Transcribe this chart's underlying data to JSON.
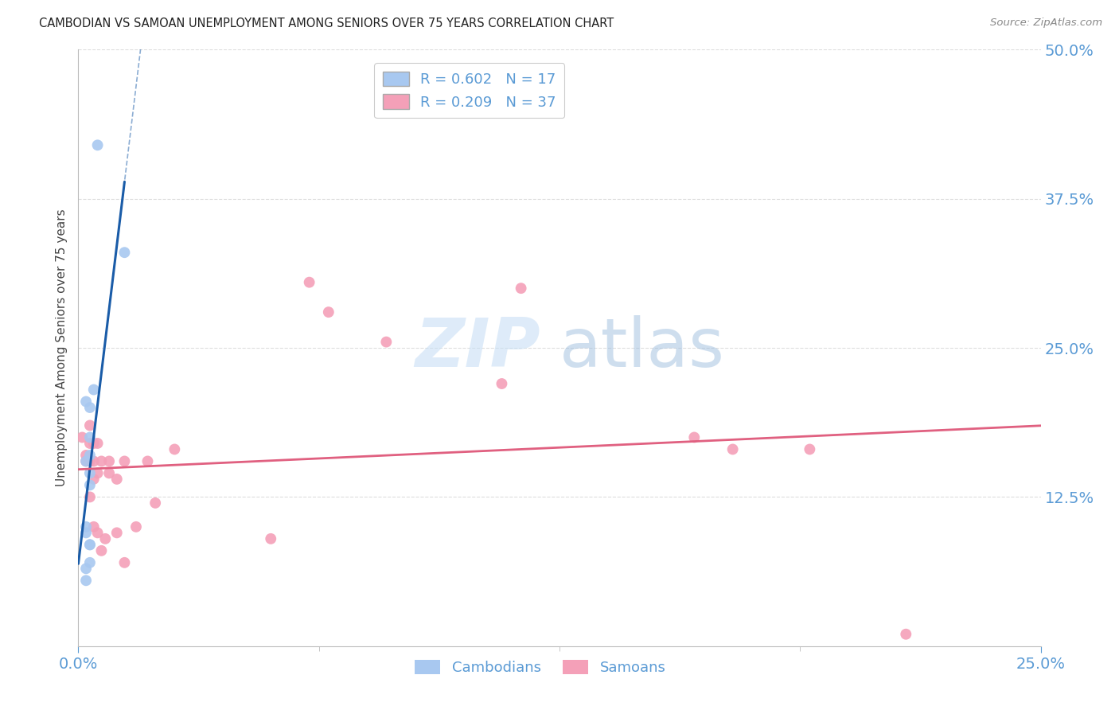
{
  "title": "CAMBODIAN VS SAMOAN UNEMPLOYMENT AMONG SENIORS OVER 75 YEARS CORRELATION CHART",
  "source": "Source: ZipAtlas.com",
  "ylabel": "Unemployment Among Seniors over 75 years",
  "watermark_zip": "ZIP",
  "watermark_atlas": "atlas",
  "xlim": [
    0,
    0.25
  ],
  "ylim": [
    0,
    0.5
  ],
  "cambodian_color": "#a8c8f0",
  "samoan_color": "#f4a0b8",
  "cambodian_line_color": "#1a5ca8",
  "samoan_line_color": "#e06080",
  "cambodian_R": 0.602,
  "cambodian_N": 17,
  "samoan_R": 0.209,
  "samoan_N": 37,
  "cambodian_x": [
    0.003,
    0.005,
    0.004,
    0.003,
    0.002,
    0.003,
    0.002,
    0.003,
    0.003,
    0.002,
    0.002,
    0.003,
    0.003,
    0.002,
    0.002,
    0.003,
    0.012
  ],
  "cambodian_y": [
    0.2,
    0.42,
    0.215,
    0.175,
    0.205,
    0.16,
    0.155,
    0.135,
    0.085,
    0.1,
    0.095,
    0.085,
    0.07,
    0.065,
    0.055,
    0.145,
    0.33
  ],
  "samoan_x": [
    0.001,
    0.002,
    0.002,
    0.003,
    0.003,
    0.003,
    0.003,
    0.004,
    0.004,
    0.004,
    0.004,
    0.005,
    0.005,
    0.005,
    0.006,
    0.006,
    0.007,
    0.008,
    0.008,
    0.01,
    0.01,
    0.012,
    0.012,
    0.015,
    0.018,
    0.02,
    0.025,
    0.05,
    0.06,
    0.065,
    0.08,
    0.11,
    0.115,
    0.16,
    0.17,
    0.19,
    0.215
  ],
  "samoan_y": [
    0.175,
    0.16,
    0.155,
    0.185,
    0.17,
    0.155,
    0.125,
    0.17,
    0.155,
    0.14,
    0.1,
    0.17,
    0.145,
    0.095,
    0.155,
    0.08,
    0.09,
    0.155,
    0.145,
    0.14,
    0.095,
    0.155,
    0.07,
    0.1,
    0.155,
    0.12,
    0.165,
    0.09,
    0.305,
    0.28,
    0.255,
    0.22,
    0.3,
    0.175,
    0.165,
    0.165,
    0.01
  ],
  "background_color": "#ffffff",
  "grid_color": "#dddddd",
  "title_color": "#222222",
  "tick_color": "#5b9bd5",
  "marker_size": 100
}
